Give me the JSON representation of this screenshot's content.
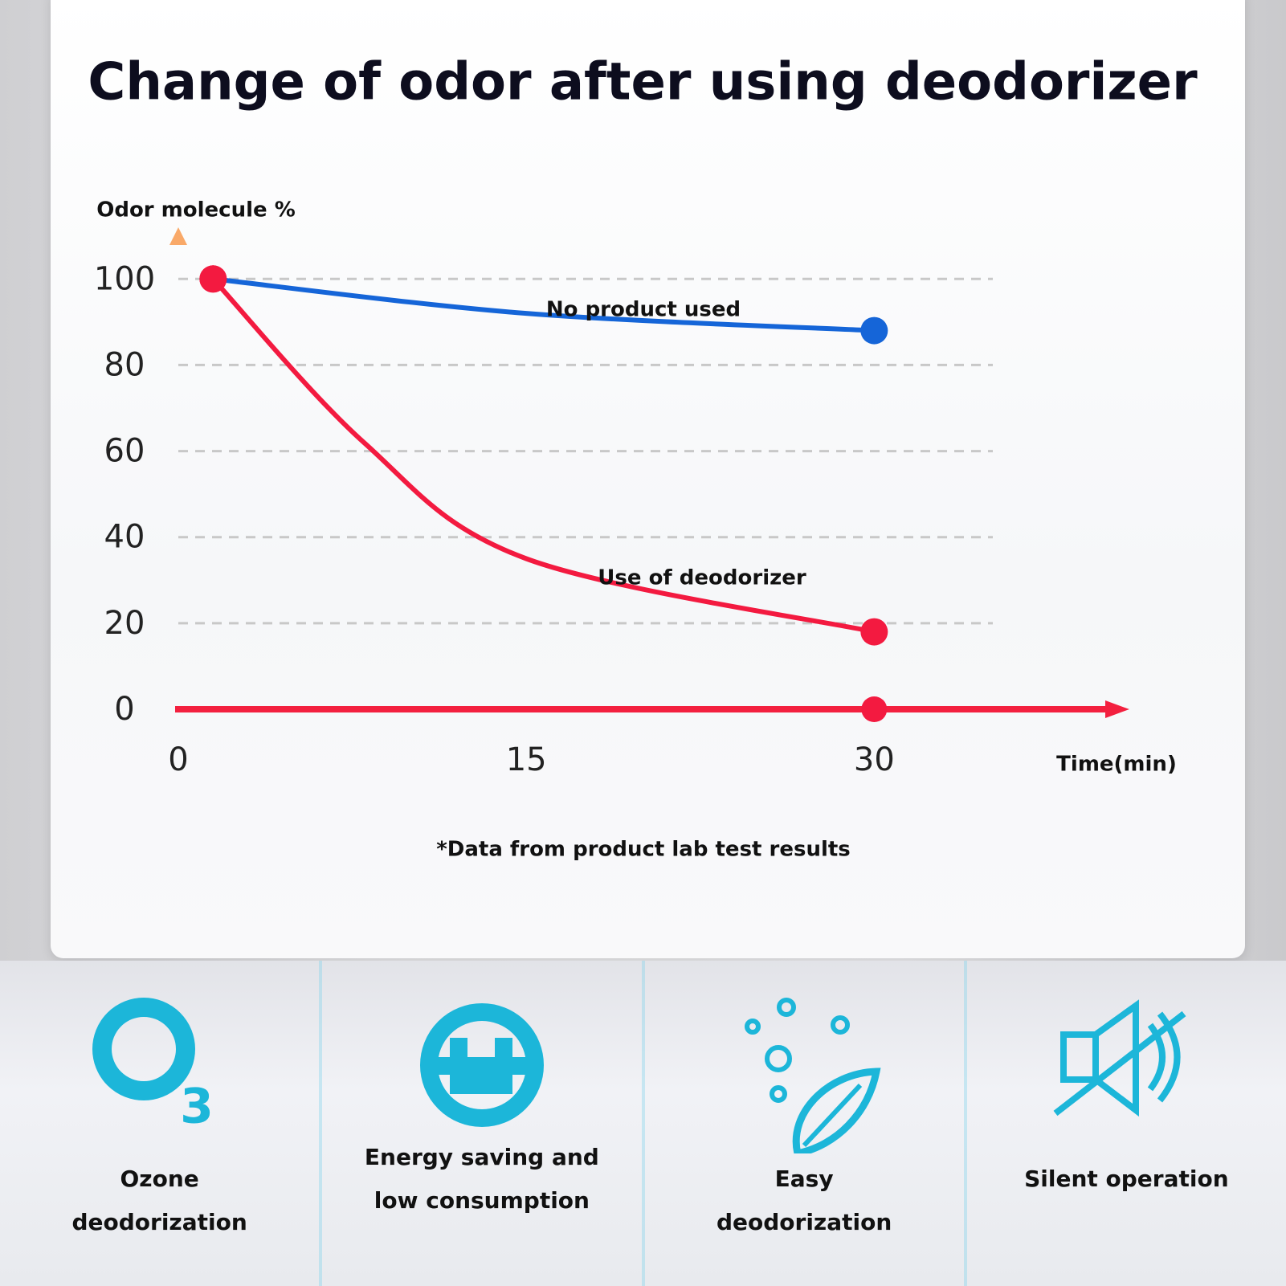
{
  "chart_data": {
    "type": "line",
    "title": "Change of odor after using deodorizer",
    "y_label": "Odor molecule %",
    "x_label": "Time(min)",
    "note": "*Data from product lab test results",
    "series": [
      {
        "name": "No product used",
        "color": "#1565d8",
        "x": [
          1.5,
          15,
          30
        ],
        "values": [
          100,
          92,
          88
        ]
      },
      {
        "name": "Use of deodorizer",
        "color": "#f31a40",
        "x": [
          1.5,
          8,
          15,
          30
        ],
        "values": [
          100,
          62,
          35,
          18
        ]
      }
    ],
    "xlim": [
      0,
      41
    ],
    "ylim": [
      0,
      112
    ],
    "xticks": [
      0,
      15,
      30
    ],
    "yticks": [
      0,
      20,
      40,
      60,
      80,
      100
    ],
    "grid": true
  },
  "features": [
    {
      "label": "Ozone deodorization"
    },
    {
      "label": "Energy saving and low consumption"
    },
    {
      "label": "Easy deodorization"
    },
    {
      "label": "Silent operation"
    }
  ]
}
